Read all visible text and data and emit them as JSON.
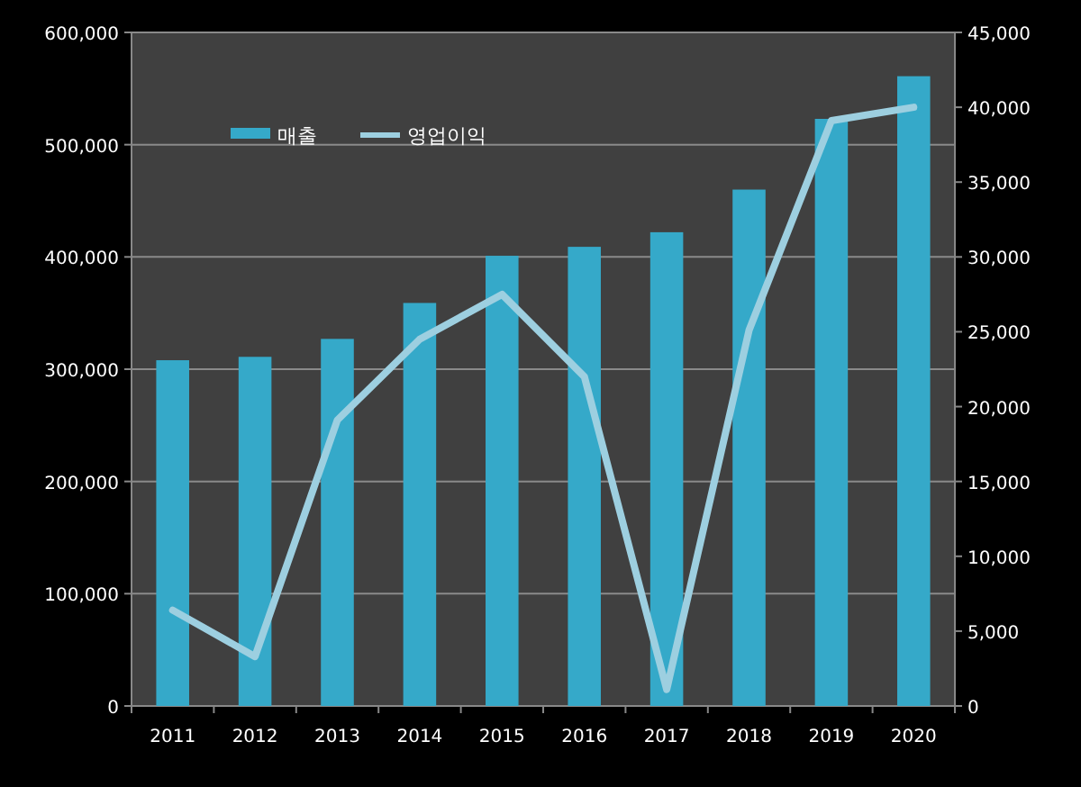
{
  "chart_data": {
    "type": "bar",
    "categories": [
      "2011",
      "2012",
      "2013",
      "2014",
      "2015",
      "2016",
      "2017",
      "2018",
      "2019",
      "2020"
    ],
    "series": [
      {
        "name": "매출",
        "color": "#35a9c9",
        "values": [
          308000,
          311000,
          327000,
          359000,
          401000,
          409000,
          422000,
          460000,
          523000,
          561000
        ]
      },
      {
        "name": "영업이익",
        "type": "line",
        "axis": "y2",
        "color": "#9dcfe0",
        "values": [
          6400,
          3300,
          19100,
          24500,
          27500,
          22000,
          1100,
          25100,
          39100,
          40000
        ]
      }
    ],
    "ylim": [
      0,
      600000
    ],
    "yticks": [
      {
        "value": 0,
        "label": "0"
      },
      {
        "value": 100000,
        "label": "100,000"
      },
      {
        "value": 200000,
        "label": "200,000"
      },
      {
        "value": 300000,
        "label": "300,000"
      },
      {
        "value": 400000,
        "label": "400,000"
      },
      {
        "value": 500000,
        "label": "500,000"
      },
      {
        "value": 600000,
        "label": "600,000"
      }
    ],
    "y2lim": [
      0,
      45000
    ],
    "y2ticks": [
      {
        "value": 0,
        "label": "0"
      },
      {
        "value": 5000,
        "label": "5,000"
      },
      {
        "value": 10000,
        "label": "10,000"
      },
      {
        "value": 15000,
        "label": "15,000"
      },
      {
        "value": 20000,
        "label": "20,000"
      },
      {
        "value": 25000,
        "label": "25,000"
      },
      {
        "value": 30000,
        "label": "30,000"
      },
      {
        "value": 35000,
        "label": "35,000"
      },
      {
        "value": 40000,
        "label": "40,000"
      },
      {
        "value": 45000,
        "label": "45,000"
      }
    ],
    "grid": "y",
    "legend": "top left",
    "marker": "none",
    "line_style": "solid"
  }
}
